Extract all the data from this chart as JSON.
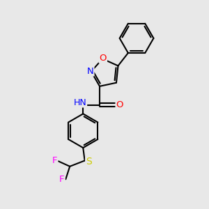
{
  "background_color": "#e8e8e8",
  "bond_color": "#000000",
  "atom_colors": {
    "O": "#ff0000",
    "N": "#0000ff",
    "S": "#cccc00",
    "F": "#ff00ff",
    "C": "#000000",
    "H": "#808080"
  },
  "font_size": 9.5,
  "figsize": [
    3.0,
    3.0
  ],
  "dpi": 100,
  "lw": 1.5,
  "off": 0.09
}
